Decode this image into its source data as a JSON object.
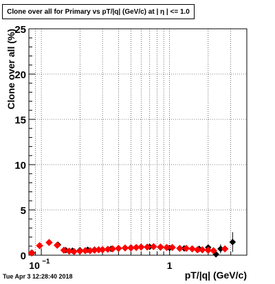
{
  "chart_data": {
    "type": "scatter",
    "title": "Clone  over all for Primary vs pT/|q| (GeV/c) at |  η | <= 1.0",
    "xlabel": "pT/|q| (GeV/c)",
    "ylabel": "Clone  over all (%)",
    "x_scale": "log",
    "xlim": [
      0.08,
      4.0
    ],
    "ylim": [
      0,
      25
    ],
    "grid": true,
    "x_ticks": [
      {
        "value": 0.1,
        "label": "10",
        "exponent": "−1"
      },
      {
        "value": 1,
        "label": "1",
        "exponent": ""
      }
    ],
    "y_ticks": [
      {
        "value": 0,
        "label": "0"
      },
      {
        "value": 5,
        "label": "5"
      },
      {
        "value": 10,
        "label": "10"
      },
      {
        "value": 15,
        "label": "15"
      },
      {
        "value": 20,
        "label": "20"
      },
      {
        "value": 25,
        "label": "25"
      }
    ],
    "series": [
      {
        "color": "#000000",
        "marker": "diamond",
        "points": [
          {
            "x": 0.085,
            "y": 0.25,
            "err": 0.15
          },
          {
            "x": 0.097,
            "y": 1.05,
            "err": 0.25
          },
          {
            "x": 0.115,
            "y": 1.4,
            "err": 0.2
          },
          {
            "x": 0.135,
            "y": 1.15,
            "err": 0.15
          },
          {
            "x": 0.155,
            "y": 0.55,
            "err": 0.12
          },
          {
            "x": 0.175,
            "y": 0.5,
            "err": 0.1
          },
          {
            "x": 0.2,
            "y": 0.55,
            "err": 0.1
          },
          {
            "x": 0.23,
            "y": 0.6,
            "err": 0.1
          },
          {
            "x": 0.26,
            "y": 0.62,
            "err": 0.1
          },
          {
            "x": 0.3,
            "y": 0.65,
            "err": 0.1
          },
          {
            "x": 0.35,
            "y": 0.7,
            "err": 0.1
          },
          {
            "x": 0.4,
            "y": 0.75,
            "err": 0.1
          },
          {
            "x": 0.5,
            "y": 0.85,
            "err": 0.1
          },
          {
            "x": 0.6,
            "y": 0.9,
            "err": 0.1
          },
          {
            "x": 0.7,
            "y": 0.92,
            "err": 0.1
          },
          {
            "x": 0.85,
            "y": 0.85,
            "err": 0.1
          },
          {
            "x": 1.0,
            "y": 0.8,
            "err": 0.1
          },
          {
            "x": 1.3,
            "y": 0.75,
            "err": 0.12
          },
          {
            "x": 1.7,
            "y": 0.7,
            "err": 0.15
          },
          {
            "x": 2.0,
            "y": 0.85,
            "err": 0.3
          },
          {
            "x": 2.3,
            "y": 0.1,
            "err": 0.3
          },
          {
            "x": 2.5,
            "y": 0.7,
            "err": 0.5
          },
          {
            "x": 3.1,
            "y": 1.45,
            "err": 1.1
          }
        ]
      },
      {
        "color": "#ff0000",
        "marker": "diamond",
        "points": [
          {
            "x": 0.084,
            "y": 0.25
          },
          {
            "x": 0.097,
            "y": 1.05
          },
          {
            "x": 0.115,
            "y": 1.4
          },
          {
            "x": 0.133,
            "y": 1.1
          },
          {
            "x": 0.15,
            "y": 0.55
          },
          {
            "x": 0.165,
            "y": 0.45
          },
          {
            "x": 0.18,
            "y": 0.4
          },
          {
            "x": 0.2,
            "y": 0.45
          },
          {
            "x": 0.22,
            "y": 0.5
          },
          {
            "x": 0.24,
            "y": 0.5
          },
          {
            "x": 0.26,
            "y": 0.55
          },
          {
            "x": 0.28,
            "y": 0.6
          },
          {
            "x": 0.3,
            "y": 0.6
          },
          {
            "x": 0.33,
            "y": 0.65
          },
          {
            "x": 0.36,
            "y": 0.7
          },
          {
            "x": 0.4,
            "y": 0.75
          },
          {
            "x": 0.45,
            "y": 0.8
          },
          {
            "x": 0.5,
            "y": 0.8
          },
          {
            "x": 0.55,
            "y": 0.85
          },
          {
            "x": 0.6,
            "y": 0.9
          },
          {
            "x": 0.67,
            "y": 0.9
          },
          {
            "x": 0.75,
            "y": 0.95
          },
          {
            "x": 0.85,
            "y": 0.9
          },
          {
            "x": 0.95,
            "y": 0.85
          },
          {
            "x": 1.05,
            "y": 0.85
          },
          {
            "x": 1.2,
            "y": 0.75
          },
          {
            "x": 1.35,
            "y": 0.75
          },
          {
            "x": 1.5,
            "y": 0.7
          },
          {
            "x": 1.65,
            "y": 0.6
          },
          {
            "x": 1.8,
            "y": 0.6
          },
          {
            "x": 2.0,
            "y": 0.55
          },
          {
            "x": 2.2,
            "y": 0.5
          },
          {
            "x": 2.7,
            "y": 0.7
          }
        ]
      }
    ]
  },
  "timestamp": "Tue Apr  3 12:28:40 2018"
}
